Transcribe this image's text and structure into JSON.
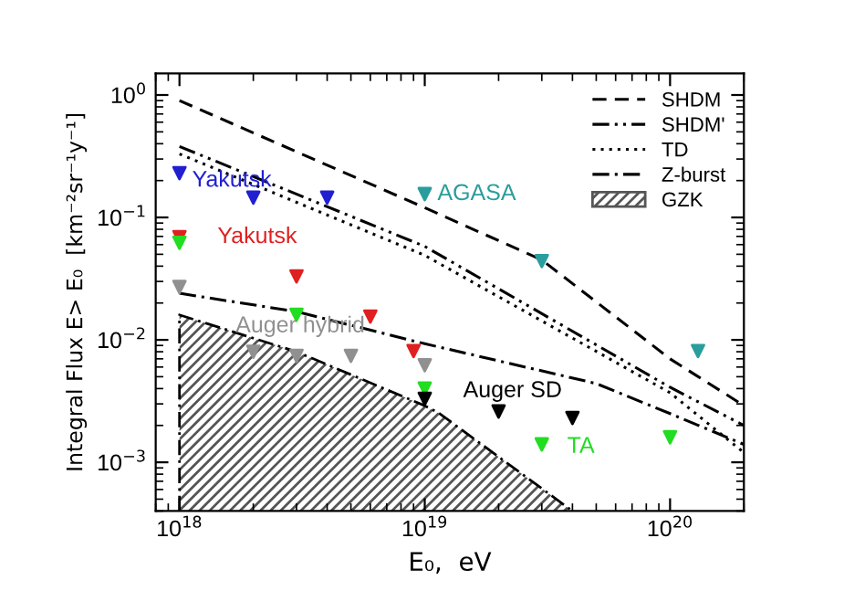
{
  "chart_data": {
    "type": "scatter",
    "xlabel": "E₀,  eV",
    "ylabel": "Integral Flux E> E₀  [km⁻²sr⁻¹y⁻¹]",
    "log": "xy",
    "xlim": [
      8e+17,
      2e+20
    ],
    "ylim": [
      0.0004,
      1.5
    ],
    "xticks": [
      {
        "value": 1e+18,
        "label": "10$^{18}$"
      },
      {
        "value": 1e+19,
        "label": "10$^{19}$"
      },
      {
        "value": 1e+20,
        "label": "10$^{20}$"
      }
    ],
    "yticks": [
      {
        "value": 0.001,
        "label": "10$^{−3}$"
      },
      {
        "value": 0.01,
        "label": "10$^{−2}$"
      },
      {
        "value": 0.1,
        "label": "10$^{−1}$"
      },
      {
        "value": 1,
        "label": "10$^{0}$"
      }
    ],
    "grid": false,
    "legend": "top right",
    "series": [
      {
        "name": "SHDM",
        "type": "line",
        "line_style": "dashed",
        "color": "#000000",
        "x": [
          1e+18,
          1e+19,
          3e+19,
          1e+20,
          2e+20
        ],
        "values": [
          0.9,
          0.12,
          0.045,
          0.007,
          0.0029
        ]
      },
      {
        "name": "SHDM'",
        "type": "line",
        "line_style": "dashdotdot",
        "color": "#000000",
        "x": [
          1e+18,
          1e+19,
          1e+20,
          2e+20
        ],
        "values": [
          0.38,
          0.058,
          0.0041,
          0.002
        ]
      },
      {
        "name": "TD",
        "type": "line",
        "line_style": "dotted",
        "color": "#000000",
        "x": [
          1e+18,
          1e+19,
          1e+20,
          2e+20
        ],
        "values": [
          0.33,
          0.049,
          0.0037,
          0.0012
        ]
      },
      {
        "name": "Z-burst",
        "type": "line",
        "line_style": "dashdot",
        "color": "#000000",
        "x": [
          1e+18,
          3e+18,
          1e+19,
          5e+19,
          1e+20,
          2e+20
        ],
        "values": [
          0.024,
          0.017,
          0.0093,
          0.0044,
          0.0025,
          0.0014
        ]
      },
      {
        "name": "GZK",
        "type": "area",
        "color": "#555555",
        "x": [
          1e+18,
          3e+18,
          1e+19,
          1.15e+19,
          4e+19
        ],
        "values": [
          0.016,
          0.008,
          0.0029,
          0.0025,
          0.0004
        ]
      },
      {
        "name": "Yakutsk",
        "marker": "triangle",
        "color": "#2020d0",
        "x": [
          1e+18,
          2e+18,
          4e+18
        ],
        "values": [
          0.23,
          0.145,
          0.145
        ]
      },
      {
        "name": "AGASA",
        "marker": "triangle",
        "color": "#2a9d9d",
        "x": [
          1e+19,
          3e+19,
          1.3e+20
        ],
        "values": [
          0.155,
          0.044,
          0.0081
        ]
      },
      {
        "name": "Yakutsk",
        "marker": "triangle",
        "color": "#e02020",
        "x": [
          1e+18,
          3e+18,
          6e+18,
          9e+18
        ],
        "values": [
          0.069,
          0.033,
          0.0155,
          0.0081
        ]
      },
      {
        "name": "TA",
        "marker": "triangle",
        "color": "#22dd22",
        "x": [
          1e+18,
          3e+18,
          1e+19,
          3e+19,
          1e+20
        ],
        "values": [
          0.062,
          0.016,
          0.004,
          0.0014,
          0.0016
        ]
      },
      {
        "name": "Auger hybrid",
        "marker": "triangle",
        "color": "#909090",
        "x": [
          1e+18,
          2e+18,
          3e+18,
          5e+18,
          1e+19
        ],
        "values": [
          0.027,
          0.008,
          0.0074,
          0.0074,
          0.0062
        ]
      },
      {
        "name": "Auger SD",
        "marker": "triangle",
        "color": "#000000",
        "x": [
          1e+19,
          2e+19,
          4e+19
        ],
        "values": [
          0.0033,
          0.0026,
          0.0023
        ]
      }
    ]
  }
}
